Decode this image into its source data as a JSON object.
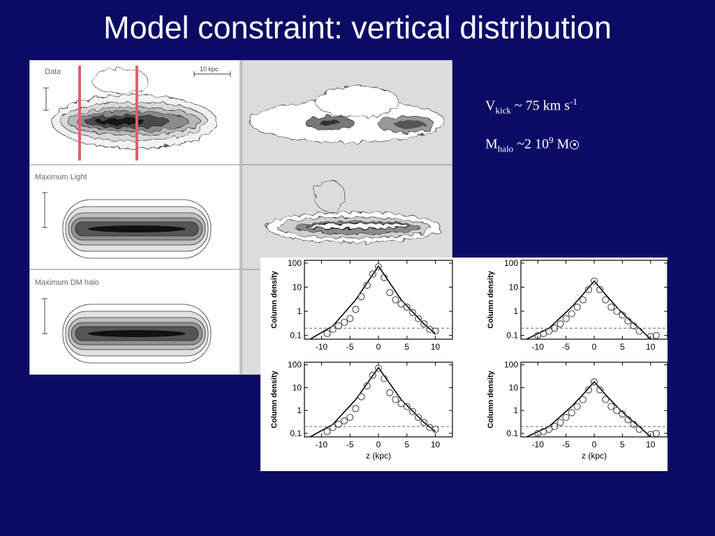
{
  "slide": {
    "title": "Model constraint: vertical distribution"
  },
  "contour_panels": {
    "labels": [
      "Data",
      "Maximum Light",
      "Maximum DM halo"
    ],
    "scale_bar_label": "10 kpc"
  },
  "annotations": {
    "vkick": {
      "symbol": "V",
      "sub": "kick",
      "text": " ~ 75 km s",
      "sup": "-1"
    },
    "mhalo": {
      "symbol": "M",
      "sub": "halo",
      "text": " ~2 10",
      "sup": "9",
      "unit": " M"
    }
  },
  "colors": {
    "background": "#0b0b66",
    "slice_markers": "#e0606a"
  },
  "chart_data": [
    {
      "type": "scatter",
      "panel": "top-left",
      "xlabel": "",
      "ylabel": "Column density",
      "yscale": "log",
      "xlim": [
        -13,
        13
      ],
      "ylim": [
        0.07,
        130
      ],
      "xticks": [
        -10,
        -5,
        0,
        5,
        10
      ],
      "yticks": [
        0.1,
        1,
        10,
        100
      ],
      "ytick_labels": [
        "0.1",
        "1",
        "10",
        "100"
      ],
      "reference_line": 0.2,
      "model_line": {
        "x": [
          -12,
          -8,
          -4,
          -2,
          0,
          2,
          4,
          8,
          10
        ],
        "y": [
          0.07,
          0.25,
          3,
          15,
          75,
          15,
          3,
          0.3,
          0.12
        ]
      },
      "points": {
        "x": [
          -9,
          -8,
          -7,
          -6,
          -5,
          -4,
          -3,
          -2,
          -1,
          0,
          1,
          2,
          3,
          4,
          5,
          6,
          7,
          8,
          9,
          10
        ],
        "y": [
          0.12,
          0.18,
          0.25,
          0.35,
          0.5,
          1.2,
          4,
          12,
          35,
          70,
          25,
          6,
          3,
          2,
          1.5,
          0.9,
          0.5,
          0.3,
          0.18,
          0.15
        ]
      }
    },
    {
      "type": "scatter",
      "panel": "top-right",
      "xlabel": "",
      "ylabel": "Column density",
      "yscale": "log",
      "xlim": [
        -13,
        13
      ],
      "ylim": [
        0.07,
        130
      ],
      "xticks": [
        -10,
        -5,
        0,
        5,
        10
      ],
      "yticks": [
        0.1,
        1,
        10,
        100
      ],
      "ytick_labels": [
        "0.1",
        "1",
        "10",
        "100"
      ],
      "reference_line": 0.2,
      "model_line": {
        "x": [
          -12,
          -8,
          -4,
          -2,
          0,
          2,
          4,
          6,
          8,
          10
        ],
        "y": [
          0.07,
          0.2,
          1.5,
          5,
          18,
          5,
          1.5,
          0.5,
          0.2,
          0.07
        ]
      },
      "points": {
        "x": [
          -10,
          -9,
          -8,
          -7,
          -6,
          -5,
          -4,
          -3,
          -2,
          -1,
          0,
          1,
          2,
          3,
          4,
          5,
          6,
          7,
          8,
          10,
          11
        ],
        "y": [
          0.1,
          0.12,
          0.15,
          0.2,
          0.3,
          0.5,
          0.8,
          1.5,
          3,
          8,
          18,
          8,
          3,
          1.5,
          1,
          0.7,
          0.4,
          0.25,
          0.15,
          0.09,
          0.1
        ]
      }
    },
    {
      "type": "scatter",
      "panel": "bottom-left",
      "xlabel": "z (kpc)",
      "ylabel": "Column density",
      "yscale": "log",
      "xlim": [
        -13,
        13
      ],
      "ylim": [
        0.07,
        130
      ],
      "xticks": [
        -10,
        -5,
        0,
        5,
        10
      ],
      "yticks": [
        0.1,
        1,
        10,
        100
      ],
      "ytick_labels": [
        "0.1",
        "1",
        "10",
        "100"
      ],
      "reference_line": 0.2,
      "model_line": {
        "x": [
          -12,
          -8,
          -4,
          -2,
          0,
          2,
          4,
          8,
          10
        ],
        "y": [
          0.07,
          0.25,
          3,
          15,
          75,
          15,
          3,
          0.3,
          0.12
        ]
      },
      "points": {
        "x": [
          -9,
          -8,
          -7,
          -6,
          -5,
          -4,
          -3,
          -2,
          -1,
          0,
          1,
          2,
          3,
          4,
          5,
          6,
          7,
          8,
          9,
          10
        ],
        "y": [
          0.12,
          0.18,
          0.25,
          0.35,
          0.5,
          1.2,
          4,
          12,
          35,
          70,
          25,
          6,
          3,
          2,
          1.5,
          0.9,
          0.5,
          0.3,
          0.18,
          0.15
        ]
      }
    },
    {
      "type": "scatter",
      "panel": "bottom-right",
      "xlabel": "z (kpc)",
      "ylabel": "Column density",
      "yscale": "log",
      "xlim": [
        -13,
        13
      ],
      "ylim": [
        0.07,
        130
      ],
      "xticks": [
        -10,
        -5,
        0,
        5,
        10
      ],
      "yticks": [
        0.1,
        1,
        10,
        100
      ],
      "ytick_labels": [
        "0.1",
        "1",
        "10",
        "100"
      ],
      "reference_line": 0.2,
      "model_line": {
        "x": [
          -12,
          -8,
          -4,
          -2,
          0,
          2,
          4,
          6,
          8,
          10
        ],
        "y": [
          0.07,
          0.2,
          1.5,
          5,
          18,
          5,
          1.5,
          0.5,
          0.2,
          0.07
        ]
      },
      "points": {
        "x": [
          -10,
          -9,
          -8,
          -7,
          -6,
          -5,
          -4,
          -3,
          -2,
          -1,
          0,
          1,
          2,
          3,
          4,
          5,
          6,
          7,
          8,
          10,
          11
        ],
        "y": [
          0.1,
          0.12,
          0.15,
          0.2,
          0.3,
          0.5,
          0.8,
          1.5,
          3,
          8,
          18,
          8,
          3,
          1.5,
          1,
          0.7,
          0.4,
          0.25,
          0.15,
          0.09,
          0.1
        ]
      }
    }
  ]
}
